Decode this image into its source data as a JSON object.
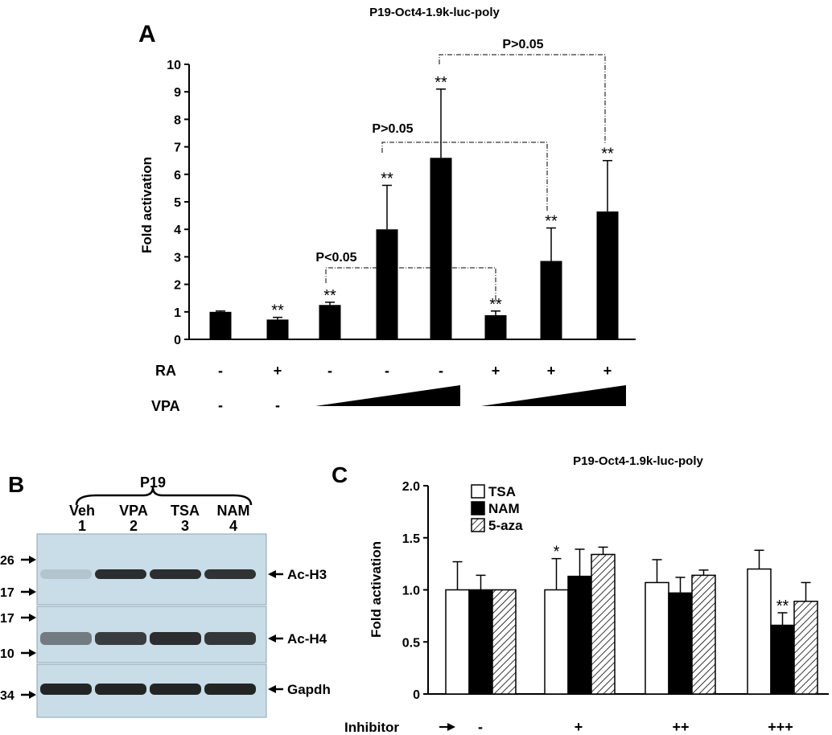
{
  "panel_a": {
    "letter": "A",
    "title": "P19-Oct4-1.9k-luc-poly",
    "row_labels": {
      "ra": "RA",
      "vpa": "VPA"
    },
    "ra_signs": [
      "-",
      "+",
      "-",
      "-",
      "-",
      "+",
      "+",
      "+"
    ],
    "vpa_signs": [
      "-",
      "-"
    ],
    "comparisons": [
      "P<0.05",
      "P>0.05",
      "P>0.05"
    ]
  },
  "panel_b": {
    "letter": "B",
    "group_label": "P19",
    "lanes": [
      {
        "name": "Veh",
        "number": "1"
      },
      {
        "name": "VPA",
        "number": "2"
      },
      {
        "name": "TSA",
        "number": "3"
      },
      {
        "name": "NAM",
        "number": "4"
      }
    ],
    "blots": [
      {
        "label": "Ac-H3",
        "markers": [
          "26",
          "17"
        ]
      },
      {
        "label": "Ac-H4",
        "markers": [
          "17",
          "10"
        ]
      },
      {
        "label": "Gapdh",
        "markers": [
          "34"
        ]
      }
    ],
    "lane_intensity": {
      "Ac-H3": [
        0.12,
        0.9,
        0.9,
        0.88
      ],
      "Ac-H4": [
        0.5,
        0.82,
        0.9,
        0.85
      ],
      "Gapdh": [
        0.95,
        0.95,
        0.95,
        0.95
      ]
    }
  },
  "panel_c": {
    "letter": "C",
    "title": "P19-Oct4-1.9k-luc-poly",
    "inhibitor_label": "Inhibitor",
    "inhibitor_levels": [
      "-",
      "+",
      "++",
      "+++"
    ]
  },
  "colors": {
    "bar": "#000000",
    "axis": "#000000",
    "blot_bg": "#c8dde8",
    "band": "#1a1a1a"
  },
  "chart_data": [
    {
      "type": "bar",
      "ylabel": "Fold activation",
      "ylim": [
        0,
        10
      ],
      "yticks": [
        "0",
        "1",
        "2",
        "3",
        "4",
        "5",
        "6",
        "7",
        "8",
        "9",
        "10"
      ],
      "values": [
        1.0,
        0.72,
        1.25,
        4.0,
        6.6,
        0.88,
        2.85,
        4.65
      ],
      "errors": [
        0.03,
        0.08,
        0.1,
        1.6,
        2.5,
        0.15,
        1.2,
        1.85
      ],
      "significance": [
        "",
        "**",
        "**",
        "**",
        "**",
        "**",
        "**",
        "**"
      ]
    },
    {
      "type": "bar",
      "ylabel": "Fold activation",
      "ylim": [
        0,
        2.0
      ],
      "yticks": [
        "0",
        "0.5",
        "1.0",
        "1.5",
        "2.0"
      ],
      "categories": [
        "-",
        "+",
        "++",
        "+++"
      ],
      "series": [
        {
          "name": "TSA",
          "values": [
            1.0,
            1.0,
            1.07,
            1.2
          ],
          "errors": [
            0.27,
            0.3,
            0.22,
            0.18
          ],
          "significance": [
            "",
            "*",
            "",
            ""
          ]
        },
        {
          "name": "NAM",
          "values": [
            1.0,
            1.13,
            0.97,
            0.66
          ],
          "errors": [
            0.14,
            0.26,
            0.15,
            0.12
          ],
          "significance": [
            "",
            "",
            "",
            "**"
          ]
        },
        {
          "name": "5-aza",
          "values": [
            1.0,
            1.34,
            1.14,
            0.89
          ],
          "errors": [
            0.0,
            0.07,
            0.05,
            0.18
          ],
          "significance": [
            "",
            "",
            "",
            ""
          ]
        }
      ]
    }
  ]
}
